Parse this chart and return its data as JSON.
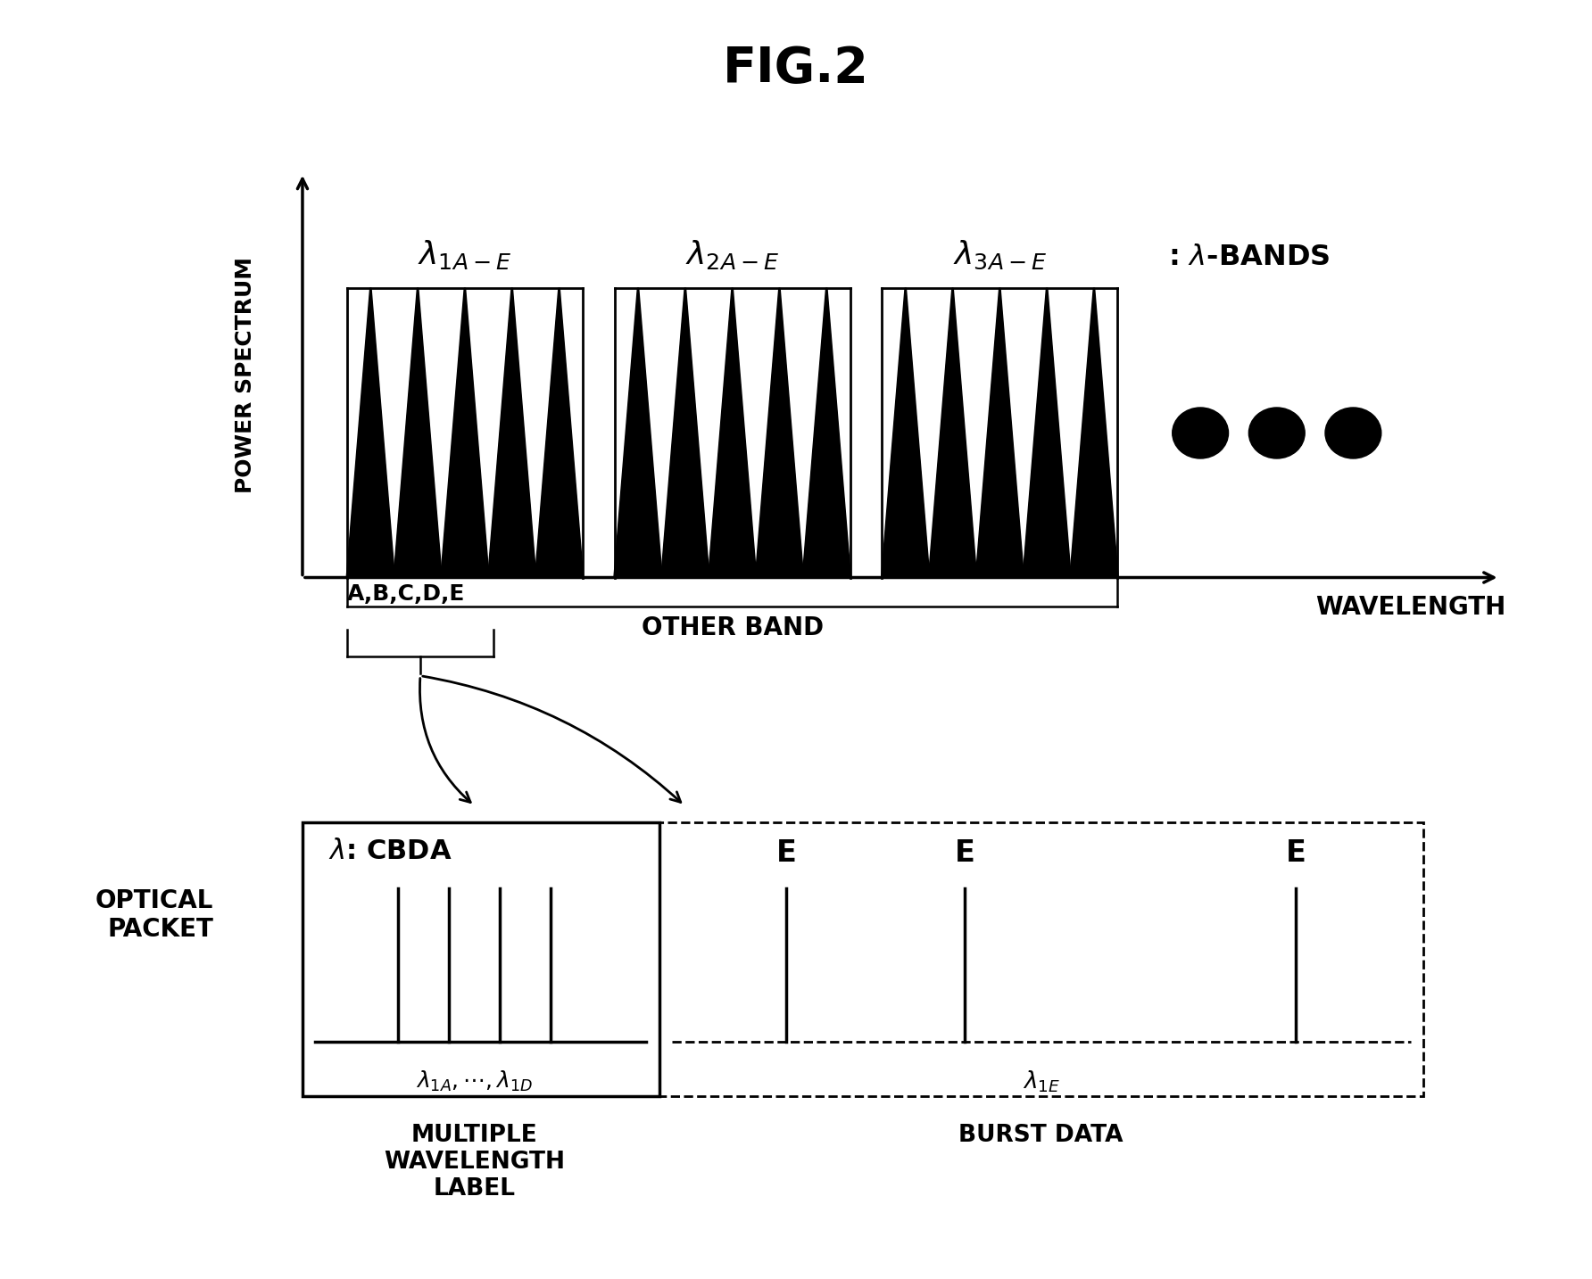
{
  "title": "FIG.2",
  "title_fontsize": 40,
  "bg_color": "#ffffff",
  "text_color": "#000000",
  "spectrum_ylabel": "POWER SPECTRUM",
  "spectrum_xlabel": "WAVELENGTH",
  "other_band_label": "OTHER BAND",
  "abcde_label": "A,B,C,D,E",
  "optical_packet_label": "OPTICAL\nPACKET",
  "lambda_cbda": "λ: CBDA",
  "multiple_wl_label": "MULTIPLE\nWAVELENGTH\nLABEL",
  "burst_data_label": "BURST DATA"
}
